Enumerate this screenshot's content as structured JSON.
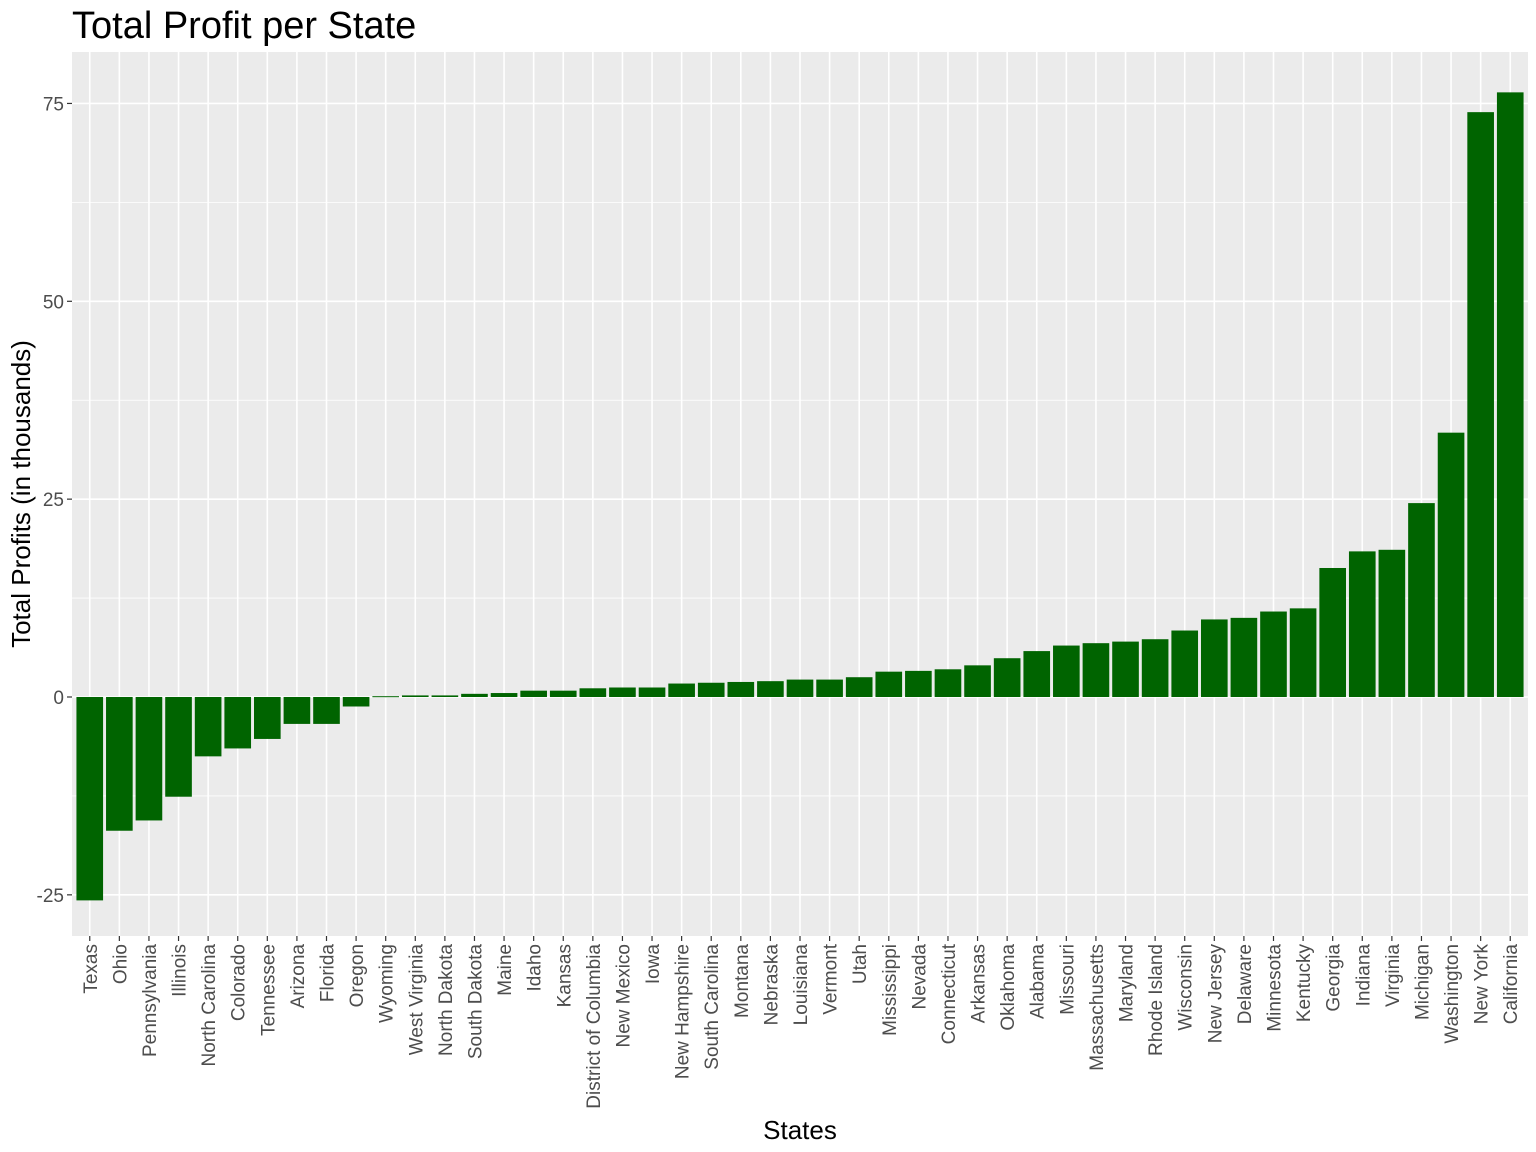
{
  "chart_data": {
    "type": "bar",
    "title": "Total Profit per State",
    "xlabel": "States",
    "ylabel": "Total Profits (in thousands)",
    "ylim": [
      -30.2,
      81.5
    ],
    "yticks": [
      -25,
      0,
      25,
      50,
      75
    ],
    "ytick_labels": [
      "-25",
      "0",
      "25",
      "50",
      "75"
    ],
    "grid": true,
    "bar_color": "#006400",
    "panel_color": "#EBEBEB",
    "categories": [
      "Texas",
      "Ohio",
      "Pennsylvania",
      "Illinois",
      "North Carolina",
      "Colorado",
      "Tennessee",
      "Arizona",
      "Florida",
      "Oregon",
      "Wyoming",
      "West Virginia",
      "North Dakota",
      "South Dakota",
      "Maine",
      "Idaho",
      "Kansas",
      "District of Columbia",
      "New Mexico",
      "Iowa",
      "New Hampshire",
      "South Carolina",
      "Montana",
      "Nebraska",
      "Louisiana",
      "Vermont",
      "Utah",
      "Mississippi",
      "Nevada",
      "Connecticut",
      "Arkansas",
      "Oklahoma",
      "Alabama",
      "Missouri",
      "Massachusetts",
      "Maryland",
      "Rhode Island",
      "Wisconsin",
      "New Jersey",
      "Delaware",
      "Minnesota",
      "Kentucky",
      "Georgia",
      "Indiana",
      "Virginia",
      "Michigan",
      "Washington",
      "New York",
      "California"
    ],
    "values": [
      -25.7,
      -16.9,
      -15.6,
      -12.6,
      -7.5,
      -6.5,
      -5.3,
      -3.4,
      -3.4,
      -1.2,
      0.1,
      0.2,
      0.2,
      0.4,
      0.5,
      0.8,
      0.8,
      1.1,
      1.2,
      1.2,
      1.7,
      1.8,
      1.9,
      2.0,
      2.2,
      2.2,
      2.5,
      3.2,
      3.3,
      3.5,
      4.0,
      4.9,
      5.8,
      6.5,
      6.8,
      7.0,
      7.3,
      8.4,
      9.8,
      10.0,
      10.8,
      11.2,
      16.3,
      18.4,
      18.6,
      24.5,
      33.4,
      73.9,
      76.4
    ]
  }
}
